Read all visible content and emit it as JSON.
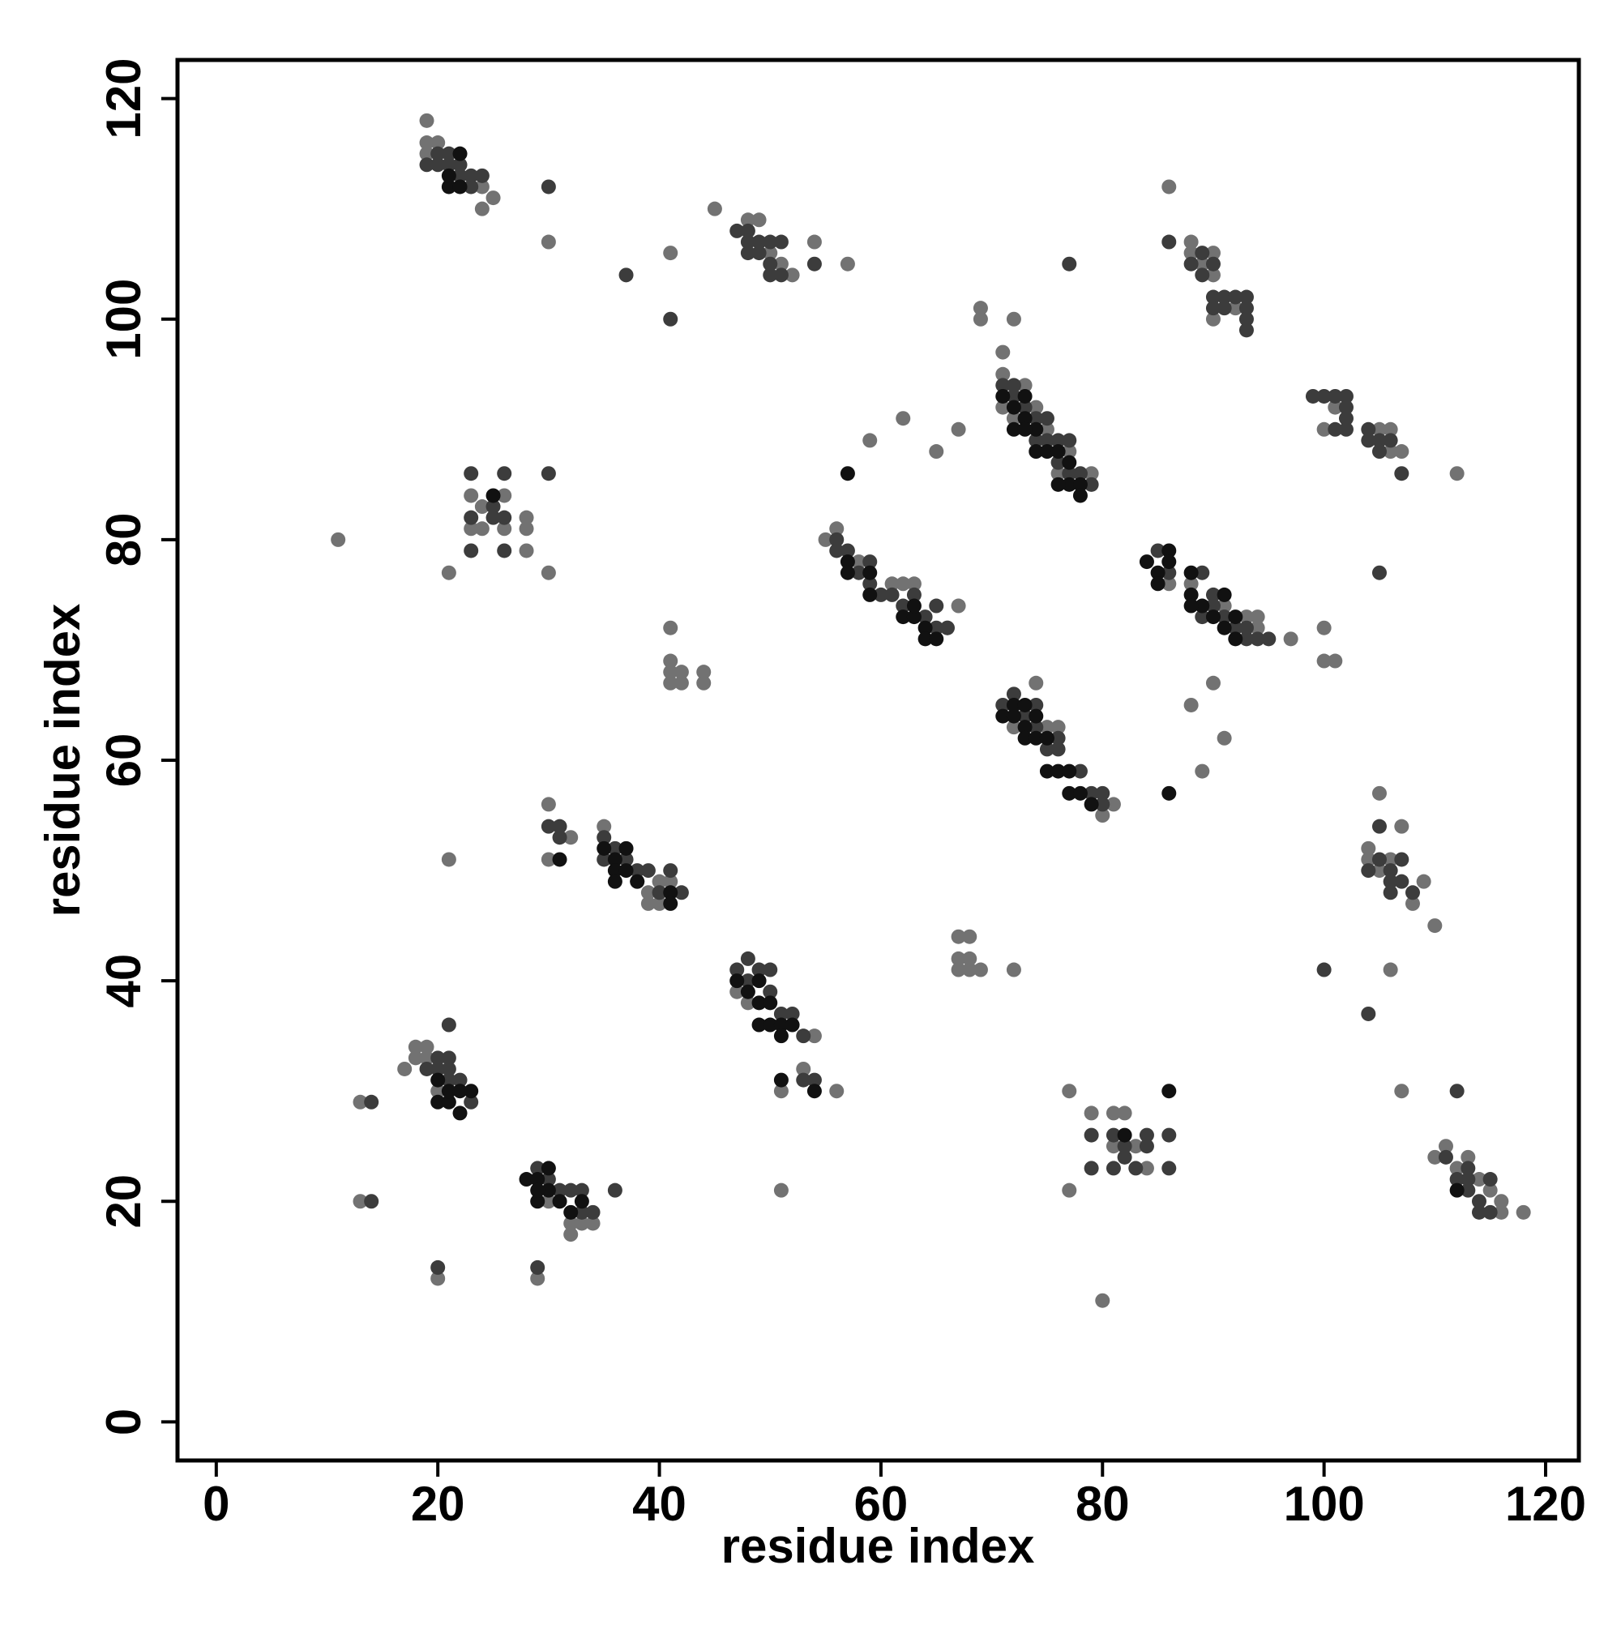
{
  "chart_data": {
    "type": "scatter",
    "xlabel": "residue index",
    "ylabel": "residue index",
    "xlim": [
      -3.5,
      123
    ],
    "ylim": [
      -3.5,
      123.5
    ],
    "xticks": [
      0,
      20,
      40,
      60,
      80,
      100,
      120
    ],
    "yticks": [
      0,
      20,
      40,
      60,
      80,
      100,
      120
    ],
    "grid": false,
    "series": [
      {
        "color": "#727272",
        "x": [
          19,
          19,
          20,
          19,
          24,
          25,
          24,
          30,
          41,
          45,
          48,
          49,
          50,
          51,
          52,
          57,
          54,
          69,
          69,
          72,
          86,
          88,
          88,
          89,
          90,
          90,
          90,
          92,
          71,
          71,
          73,
          71,
          72,
          74,
          75,
          76,
          79,
          77,
          59,
          62,
          65,
          67,
          100,
          101,
          106,
          107,
          105,
          106,
          112,
          23,
          23,
          24,
          24,
          26,
          26,
          28,
          28,
          28,
          21,
          30,
          11,
          55,
          56,
          58,
          61,
          62,
          66,
          67,
          63,
          86,
          88,
          91,
          93,
          94,
          94,
          97,
          41,
          41,
          41,
          42,
          41,
          42,
          44,
          44,
          100,
          100,
          101,
          74,
          72,
          76,
          75,
          80,
          81,
          88,
          90,
          91,
          89,
          30,
          30,
          32,
          35,
          38,
          39,
          40,
          39,
          41,
          40,
          21,
          105,
          104,
          105,
          106,
          107,
          108,
          109,
          110,
          104,
          67,
          68,
          67,
          68,
          67,
          68,
          69,
          72,
          106,
          47,
          48,
          51,
          53,
          54,
          56,
          17,
          18,
          19,
          19,
          20,
          18,
          13,
          13,
          30,
          32,
          32,
          33,
          34,
          31,
          20,
          29,
          51,
          77,
          77,
          79,
          81,
          82,
          81,
          83,
          84,
          80,
          111,
          110,
          112,
          114,
          115,
          116,
          116,
          118,
          113,
          107
        ],
        "values": [
          118,
          116,
          116,
          115,
          110,
          111,
          112,
          107,
          106,
          110,
          109,
          109,
          106,
          105,
          104,
          105,
          107,
          101,
          100,
          100,
          112,
          107,
          106,
          105,
          106,
          104,
          100,
          101,
          97,
          95,
          94,
          92,
          91,
          92,
          90,
          86,
          86,
          88,
          89,
          91,
          88,
          90,
          90,
          92,
          90,
          88,
          90,
          88,
          86,
          84,
          81,
          83,
          81,
          84,
          81,
          82,
          81,
          79,
          77,
          77,
          80,
          80,
          81,
          78,
          76,
          76,
          72,
          74,
          76,
          76,
          76,
          74,
          73,
          73,
          72,
          71,
          72,
          69,
          68,
          68,
          67,
          67,
          68,
          67,
          72,
          69,
          69,
          67,
          63,
          63,
          63,
          55,
          56,
          65,
          67,
          62,
          59,
          56,
          51,
          53,
          54,
          49,
          48,
          47,
          47,
          49,
          49,
          51,
          57,
          51,
          50,
          51,
          54,
          47,
          49,
          45,
          52,
          44,
          44,
          42,
          42,
          41,
          41,
          41,
          41,
          41,
          39,
          38,
          30,
          32,
          35,
          30,
          32,
          34,
          33,
          34,
          30,
          33,
          29,
          20,
          20,
          17,
          18,
          18,
          18,
          20,
          13,
          13,
          21,
          30,
          21,
          28,
          28,
          28,
          25,
          25,
          23,
          11,
          25,
          24,
          23,
          22,
          21,
          20,
          19,
          19,
          24,
          30
        ]
      },
      {
        "color": "#3c3c3c",
        "x": [
          19,
          20,
          21,
          22,
          23,
          23,
          24,
          22,
          20,
          21,
          30,
          37,
          41,
          47,
          48,
          48,
          49,
          50,
          51,
          48,
          49,
          50,
          50,
          51,
          54,
          77,
          86,
          88,
          89,
          89,
          90,
          90,
          91,
          92,
          93,
          93,
          93,
          93,
          90,
          91,
          71,
          72,
          72,
          73,
          74,
          75,
          75,
          76,
          77,
          76,
          77,
          78,
          79,
          74,
          99,
          100,
          101,
          102,
          102,
          102,
          101,
          102,
          104,
          105,
          104,
          105,
          106,
          107,
          23,
          26,
          23,
          25,
          26,
          23,
          26,
          25,
          30,
          56,
          56,
          57,
          58,
          59,
          59,
          60,
          61,
          62,
          63,
          64,
          65,
          65,
          66,
          85,
          86,
          89,
          90,
          89,
          90,
          91,
          93,
          93,
          94,
          92,
          95,
          105,
          72,
          71,
          73,
          74,
          74,
          75,
          76,
          76,
          78,
          79,
          80,
          80,
          30,
          31,
          31,
          35,
          36,
          37,
          38,
          39,
          40,
          41,
          42,
          35,
          105,
          104,
          105,
          106,
          106,
          107,
          107,
          108,
          106,
          100,
          104,
          47,
          48,
          48,
          49,
          50,
          50,
          51,
          52,
          53,
          54,
          53,
          19,
          20,
          21,
          21,
          22,
          21,
          23,
          20,
          21,
          14,
          14,
          29,
          31,
          32,
          33,
          33,
          34,
          36,
          30,
          20,
          29,
          79,
          79,
          81,
          81,
          82,
          83,
          84,
          86,
          86,
          82,
          84,
          111,
          112,
          113,
          113,
          114,
          115,
          114,
          115,
          113,
          112
        ],
        "values": [
          114,
          115,
          114,
          113,
          113,
          112,
          113,
          114,
          114,
          115,
          112,
          104,
          100,
          108,
          108,
          107,
          107,
          107,
          107,
          106,
          106,
          105,
          104,
          104,
          105,
          105,
          107,
          105,
          106,
          104,
          105,
          102,
          102,
          102,
          102,
          101,
          100,
          99,
          101,
          101,
          94,
          94,
          93,
          92,
          91,
          91,
          89,
          89,
          89,
          87,
          86,
          86,
          85,
          89,
          93,
          93,
          93,
          93,
          92,
          91,
          90,
          90,
          90,
          89,
          89,
          88,
          89,
          86,
          86,
          86,
          82,
          83,
          82,
          79,
          79,
          82,
          86,
          80,
          79,
          79,
          77,
          78,
          76,
          75,
          75,
          74,
          75,
          73,
          72,
          74,
          72,
          79,
          77,
          77,
          75,
          73,
          74,
          73,
          72,
          71,
          71,
          72,
          71,
          77,
          66,
          65,
          64,
          65,
          63,
          61,
          62,
          61,
          59,
          57,
          56,
          57,
          54,
          54,
          53,
          53,
          52,
          51,
          50,
          50,
          48,
          50,
          48,
          51,
          54,
          50,
          51,
          50,
          48,
          51,
          49,
          48,
          49,
          41,
          37,
          41,
          42,
          40,
          41,
          41,
          39,
          37,
          37,
          35,
          31,
          31,
          32,
          33,
          36,
          33,
          31,
          31,
          29,
          32,
          32,
          29,
          20,
          23,
          21,
          21,
          21,
          19,
          19,
          21,
          22,
          14,
          14,
          26,
          23,
          26,
          23,
          25,
          23,
          26,
          26,
          23,
          24,
          25,
          24,
          22,
          23,
          21,
          20,
          22,
          19,
          19,
          22,
          30
        ]
      },
      {
        "color": "#111111",
        "x": [
          21,
          22,
          22,
          21,
          57,
          71,
          72,
          73,
          73,
          72,
          74,
          74,
          75,
          76,
          77,
          77,
          76,
          78,
          78,
          73,
          25,
          57,
          57,
          59,
          59,
          62,
          63,
          64,
          64,
          65,
          63,
          84,
          85,
          86,
          86,
          88,
          88,
          89,
          90,
          91,
          92,
          91,
          88,
          92,
          85,
          71,
          72,
          72,
          73,
          73,
          74,
          74,
          75,
          75,
          76,
          77,
          77,
          78,
          79,
          73,
          86,
          31,
          35,
          36,
          36,
          37,
          37,
          38,
          36,
          41,
          41,
          47,
          48,
          49,
          49,
          49,
          50,
          50,
          51,
          51,
          52,
          54,
          51,
          20,
          21,
          21,
          22,
          22,
          23,
          20,
          28,
          29,
          30,
          30,
          29,
          31,
          32,
          33,
          29,
          86,
          82,
          112
        ],
        "values": [
          112,
          112,
          115,
          113,
          86,
          93,
          92,
          93,
          91,
          90,
          90,
          88,
          88,
          88,
          87,
          85,
          85,
          85,
          84,
          90,
          84,
          78,
          77,
          77,
          75,
          73,
          73,
          72,
          71,
          71,
          74,
          78,
          77,
          79,
          78,
          77,
          75,
          74,
          73,
          75,
          73,
          72,
          74,
          71,
          76,
          64,
          64,
          65,
          63,
          62,
          64,
          62,
          62,
          59,
          59,
          59,
          57,
          57,
          56,
          65,
          57,
          51,
          52,
          51,
          50,
          52,
          50,
          49,
          49,
          48,
          47,
          40,
          39,
          40,
          38,
          36,
          38,
          36,
          36,
          35,
          36,
          30,
          31,
          29,
          29,
          30,
          28,
          30,
          30,
          31,
          22,
          22,
          23,
          21,
          20,
          20,
          19,
          20,
          21,
          30,
          26,
          21
        ]
      }
    ]
  }
}
